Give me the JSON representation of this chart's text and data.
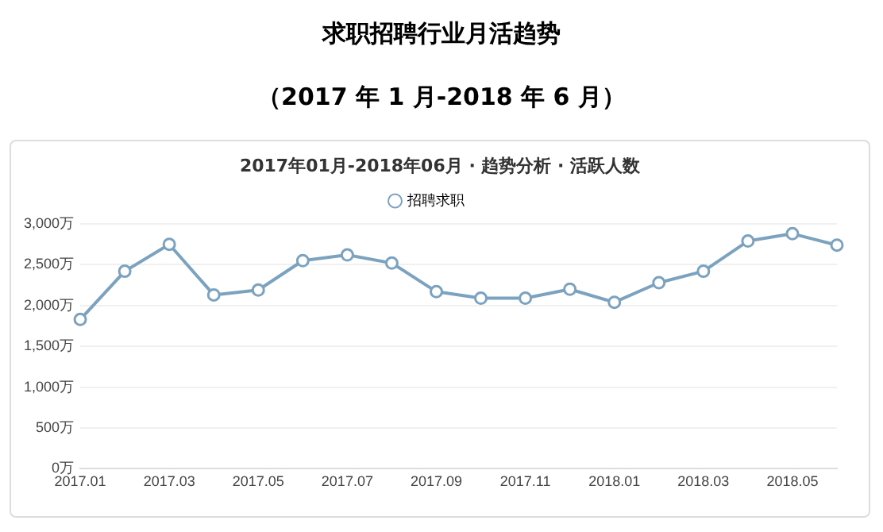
{
  "chart_data": {
    "type": "line",
    "title": "求职招聘行业月活趋势",
    "subtitle": "（2017 年 1 月-2018 年 6 月）",
    "annotations": [
      "2017年01月-2018年06月 · 趋势分析 · 活跃人数"
    ],
    "categories": [
      "2017.01",
      null,
      "2017.03",
      null,
      "2017.05",
      null,
      "2017.07",
      null,
      "2017.09",
      null,
      "2017.11",
      null,
      "2018.01",
      null,
      "2018.03",
      null,
      "2018.05",
      null
    ],
    "series": [
      {
        "name": "招聘求职",
        "color": "#7ba3bf",
        "values": [
          1830,
          2420,
          2750,
          2130,
          2190,
          2550,
          2620,
          2520,
          2170,
          2090,
          2090,
          2200,
          2040,
          2280,
          2420,
          2790,
          2880,
          2740
        ]
      }
    ],
    "ylim": [
      0,
      3000
    ],
    "yticks": [
      {
        "value": 0,
        "label": "0万"
      },
      {
        "value": 500,
        "label": "500万"
      },
      {
        "value": 1000,
        "label": "1,000万"
      },
      {
        "value": 1500,
        "label": "1,500万"
      },
      {
        "value": 2000,
        "label": "2,000万"
      },
      {
        "value": 2500,
        "label": "2,500万"
      },
      {
        "value": 3000,
        "label": "3,000万"
      }
    ],
    "grid": "y",
    "legend": "top",
    "marker": "circle",
    "line_style": "solid"
  }
}
